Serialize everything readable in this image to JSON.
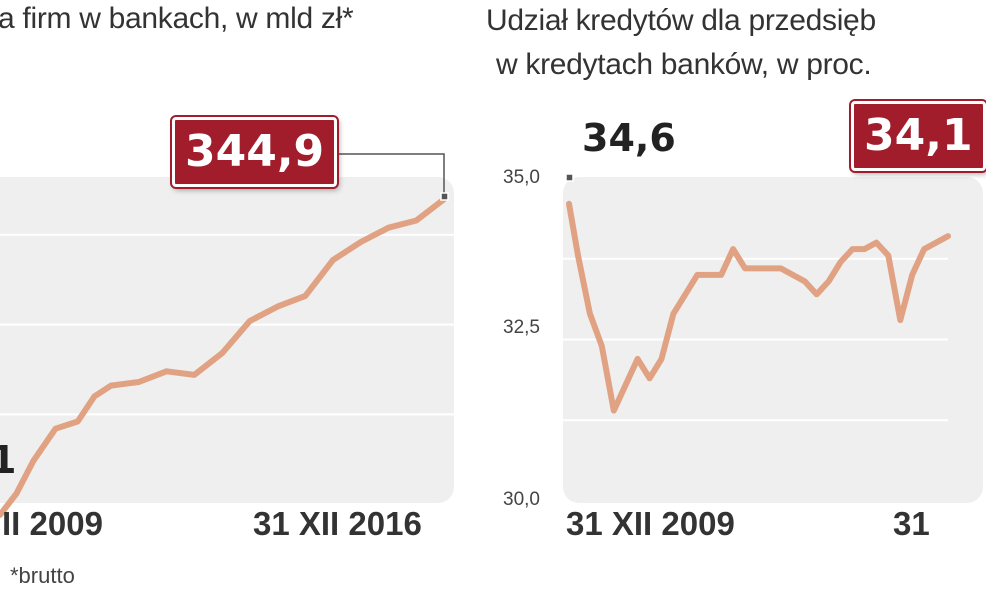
{
  "left": {
    "title": "a firm w bankach, w mld zł*",
    "end_label": "344,9",
    "start_label_partial": "1",
    "x_left_label": "II 2009",
    "x_right_label": "31 XII 2016",
    "footnote": "*brutto"
  },
  "right": {
    "title_line1": "Udział kredytów dla przedsięb",
    "title_line2": "w kredytach banków, w proc.",
    "start_label": "34,6",
    "end_label": "34,1",
    "x_left_label": "31 XII 2009",
    "x_right_label": "31",
    "yticks": [
      "35,0",
      "32,5",
      "30,0"
    ]
  },
  "chart_data": [
    {
      "type": "line",
      "title": "a firm w bankach, w mld zł*",
      "x": [
        2009.0,
        2009.3,
        2009.6,
        2010.0,
        2010.4,
        2010.7,
        2011.0,
        2011.5,
        2012.0,
        2012.5,
        2013.0,
        2013.5,
        2014.0,
        2014.5,
        2015.0,
        2015.5,
        2016.0,
        2016.5,
        2017.0
      ],
      "series": [
        {
          "values": [
            257,
            263,
            272,
            281,
            283,
            290,
            293,
            294,
            297,
            296,
            302,
            311,
            315,
            318,
            328,
            333,
            337,
            339,
            344.9
          ],
          "color": "#e0a282"
        }
      ],
      "annotations": [
        "344,9"
      ],
      "xlabels": [
        "II 2009",
        "31 XII 2016"
      ],
      "grid": true,
      "color_line": "#e0a282"
    },
    {
      "type": "line",
      "title": "Udział kredytów dla przedsięb w kredytach banków, w proc.",
      "ylim": [
        30.0,
        35.0
      ],
      "yticks": [
        35.0,
        32.5,
        30.0
      ],
      "x": [
        2009.95,
        2010.1,
        2010.3,
        2010.5,
        2010.7,
        2010.9,
        2011.1,
        2011.3,
        2011.5,
        2011.7,
        2011.9,
        2012.1,
        2012.3,
        2012.5,
        2012.7,
        2012.9,
        2013.1,
        2013.3,
        2013.5,
        2013.7,
        2013.9,
        2014.1,
        2014.3,
        2014.5,
        2014.7,
        2014.9,
        2015.1,
        2015.3,
        2015.5,
        2015.7,
        2015.9,
        2016.1,
        2016.3
      ],
      "series": [
        {
          "values": [
            34.6,
            33.8,
            32.9,
            32.4,
            31.4,
            31.8,
            32.2,
            31.9,
            32.2,
            32.9,
            33.2,
            33.5,
            33.5,
            33.5,
            33.9,
            33.6,
            33.6,
            33.6,
            33.6,
            33.5,
            33.4,
            33.2,
            33.4,
            33.7,
            33.9,
            33.9,
            34.0,
            33.8,
            32.8,
            33.5,
            33.9,
            34.0,
            34.1
          ],
          "color": "#e0a282"
        }
      ],
      "annotations": [
        "34,6",
        "34,1"
      ],
      "xlabels": [
        "31 XII 2009",
        "31"
      ],
      "grid": true,
      "color_line": "#e0a282"
    }
  ]
}
